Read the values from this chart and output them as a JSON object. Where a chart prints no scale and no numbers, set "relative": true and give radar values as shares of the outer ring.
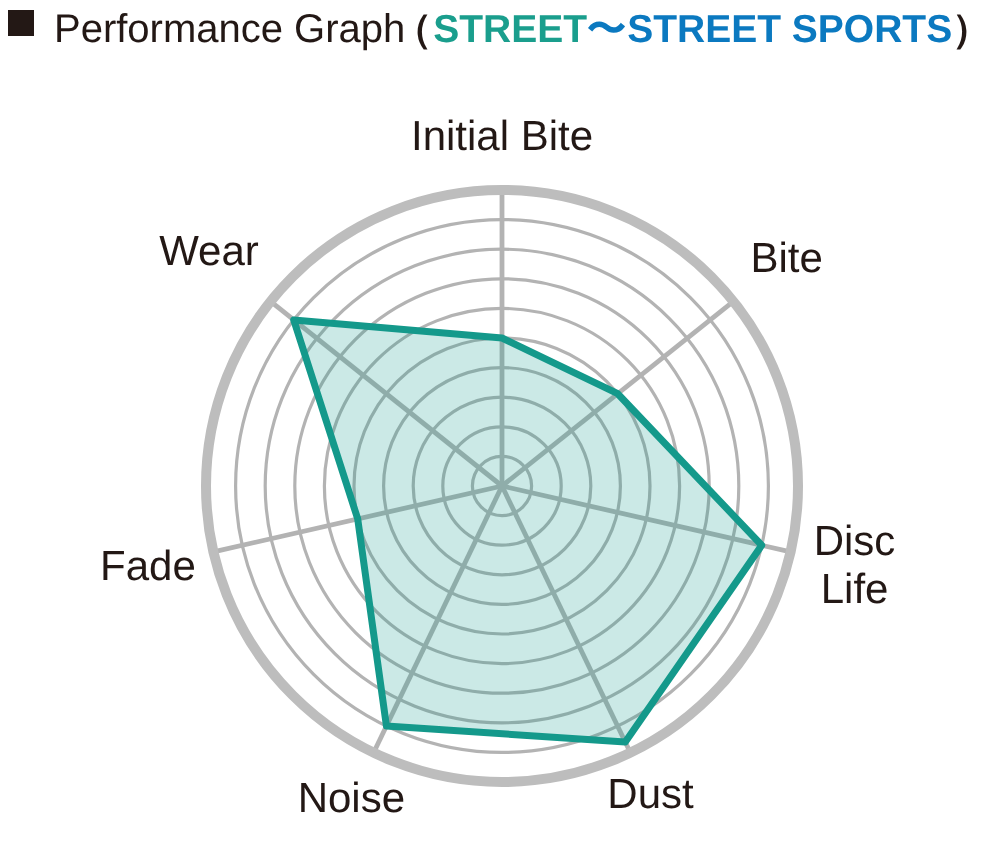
{
  "chart_data": {
    "type": "radar",
    "title": "Performance Graph",
    "subtitle": "（STREET〜STREET SPORTS）",
    "categories": [
      "Initial Bite",
      "Bite",
      "Disc Life",
      "Dust",
      "Noise",
      "Fade",
      "Wear"
    ],
    "relative": true,
    "grid": true,
    "series": [
      {
        "color": "#14998b",
        "values": [
          0.5,
          0.5,
          0.9,
          0.96,
          0.9,
          0.5,
          0.9
        ]
      }
    ]
  }
}
